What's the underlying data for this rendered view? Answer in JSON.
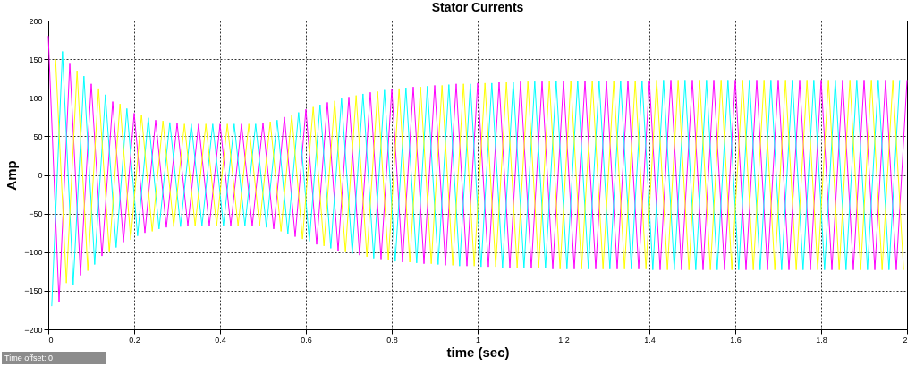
{
  "chart_data": {
    "type": "line",
    "title": "Stator Currents",
    "xlabel": "time (sec)",
    "ylabel": "Amp",
    "xlim": [
      0,
      2
    ],
    "ylim": [
      -200,
      200
    ],
    "xticks": [
      0,
      0.2,
      0.4,
      0.6,
      0.8,
      1,
      1.2,
      1.4,
      1.6,
      1.8,
      2
    ],
    "yticks": [
      -200,
      -150,
      -100,
      -50,
      0,
      50,
      100,
      150,
      200
    ],
    "grid": true,
    "legend": false,
    "marker": "none",
    "line_style": "solid",
    "annotations": [
      "Time offset: 0"
    ],
    "series": [
      {
        "color": "#ff00ff",
        "x": [
          0,
          0.025,
          0.05,
          0.075,
          0.1,
          0.125,
          0.15,
          0.175,
          0.2,
          0.225,
          0.25,
          0.275,
          0.3,
          0.325,
          0.35,
          0.375,
          0.4,
          0.425,
          0.45,
          0.475,
          0.5,
          0.525,
          0.55,
          0.575,
          0.6,
          0.625,
          0.65,
          0.675,
          0.7,
          0.725,
          0.75,
          0.775,
          0.8,
          0.825,
          0.85,
          0.875,
          0.9,
          0.925,
          0.95,
          0.975,
          1,
          1.025,
          1.05,
          1.075,
          1.1,
          1.125,
          1.15,
          1.175,
          1.2,
          1.225,
          1.25,
          1.275,
          1.3,
          1.325,
          1.35,
          1.375,
          1.4,
          1.425,
          1.45,
          1.475,
          1.5,
          1.525,
          1.55,
          1.575,
          1.6,
          1.625,
          1.65,
          1.675,
          1.7,
          1.725,
          1.75,
          1.775,
          1.8,
          1.825,
          1.85,
          1.875,
          1.9,
          1.925,
          1.95,
          1.975,
          2
        ],
        "values": [
          180,
          -165,
          145,
          -130,
          118,
          -105,
          95,
          -87,
          80,
          -75,
          71,
          -68,
          67,
          -66,
          66,
          -66,
          66,
          -66,
          66,
          -66,
          67,
          -70,
          75,
          -80,
          85,
          -90,
          94,
          -98,
          101,
          -104,
          107,
          -109,
          111,
          -113,
          114,
          -115,
          116,
          -117,
          118,
          -118,
          119,
          -119,
          120,
          -120,
          121,
          -121,
          121,
          -122,
          122,
          -122,
          122,
          -122,
          122,
          -122,
          122,
          -122,
          122,
          -123,
          123,
          -123,
          123,
          -123,
          123,
          -123,
          123,
          -123,
          123,
          -123,
          123,
          -123,
          123,
          -123,
          123,
          -123,
          123,
          -123,
          123,
          -123,
          123,
          -123,
          123
        ]
      },
      {
        "color": "#00ffff",
        "x": [
          0.008,
          0.033,
          0.058,
          0.083,
          0.108,
          0.133,
          0.158,
          0.183,
          0.208,
          0.233,
          0.258,
          0.283,
          0.308,
          0.333,
          0.358,
          0.383,
          0.408,
          0.433,
          0.458,
          0.483,
          0.508,
          0.533,
          0.558,
          0.583,
          0.608,
          0.633,
          0.658,
          0.683,
          0.708,
          0.733,
          0.758,
          0.783,
          0.808,
          0.833,
          0.858,
          0.883,
          0.908,
          0.933,
          0.958,
          0.983,
          1.008,
          1.033,
          1.058,
          1.083,
          1.108,
          1.133,
          1.158,
          1.183,
          1.208,
          1.233,
          1.258,
          1.283,
          1.308,
          1.333,
          1.358,
          1.383,
          1.408,
          1.433,
          1.458,
          1.483,
          1.508,
          1.533,
          1.558,
          1.583,
          1.608,
          1.633,
          1.658,
          1.683,
          1.708,
          1.733,
          1.758,
          1.783,
          1.808,
          1.833,
          1.858,
          1.883,
          1.908,
          1.933,
          1.958,
          1.983
        ],
        "values": [
          -170,
          160,
          -142,
          128,
          -116,
          104,
          -94,
          86,
          -79,
          74,
          -70,
          68,
          -67,
          66,
          -66,
          66,
          -66,
          66,
          -66,
          66,
          -68,
          71,
          -76,
          81,
          -86,
          91,
          -95,
          99,
          -102,
          105,
          -108,
          110,
          -112,
          113,
          -114,
          115,
          -116,
          117,
          -118,
          118,
          -119,
          119,
          -120,
          120,
          -121,
          121,
          -121,
          122,
          -122,
          122,
          -122,
          122,
          -122,
          122,
          -122,
          122,
          -123,
          123,
          -123,
          123,
          -123,
          123,
          -123,
          123,
          -123,
          123,
          -123,
          123,
          -123,
          123,
          -123,
          123,
          -123,
          123,
          -123,
          123,
          -123,
          123,
          -123,
          123
        ]
      },
      {
        "color": "#ffff00",
        "x": [
          0.017,
          0.042,
          0.067,
          0.092,
          0.117,
          0.142,
          0.167,
          0.192,
          0.217,
          0.242,
          0.267,
          0.292,
          0.317,
          0.342,
          0.367,
          0.392,
          0.417,
          0.442,
          0.467,
          0.492,
          0.517,
          0.542,
          0.567,
          0.592,
          0.617,
          0.642,
          0.667,
          0.692,
          0.717,
          0.742,
          0.767,
          0.792,
          0.817,
          0.842,
          0.867,
          0.892,
          0.917,
          0.942,
          0.967,
          0.992,
          1.017,
          1.042,
          1.067,
          1.092,
          1.117,
          1.142,
          1.167,
          1.192,
          1.217,
          1.242,
          1.267,
          1.292,
          1.317,
          1.342,
          1.367,
          1.392,
          1.417,
          1.442,
          1.467,
          1.492,
          1.517,
          1.542,
          1.567,
          1.592,
          1.617,
          1.642,
          1.667,
          1.692,
          1.717,
          1.742,
          1.767,
          1.792,
          1.817,
          1.842,
          1.867,
          1.892,
          1.917,
          1.942,
          1.967,
          1.992
        ],
        "values": [
          150,
          -140,
          135,
          -124,
          112,
          -100,
          92,
          -84,
          78,
          -73,
          70,
          -67,
          66,
          -66,
          66,
          -66,
          66,
          -66,
          66,
          -66,
          69,
          -73,
          78,
          -83,
          88,
          -92,
          96,
          -100,
          103,
          -106,
          108,
          -110,
          112,
          -113,
          114,
          -115,
          116,
          -117,
          118,
          -118,
          119,
          -119,
          120,
          -120,
          121,
          -121,
          122,
          -122,
          122,
          -122,
          122,
          -122,
          122,
          -122,
          122,
          -122,
          123,
          -123,
          123,
          -123,
          123,
          -123,
          123,
          -123,
          123,
          -123,
          123,
          -123,
          123,
          -123,
          123,
          -123,
          123,
          -123,
          123,
          -123,
          123,
          -123,
          123,
          -123
        ]
      }
    ]
  }
}
